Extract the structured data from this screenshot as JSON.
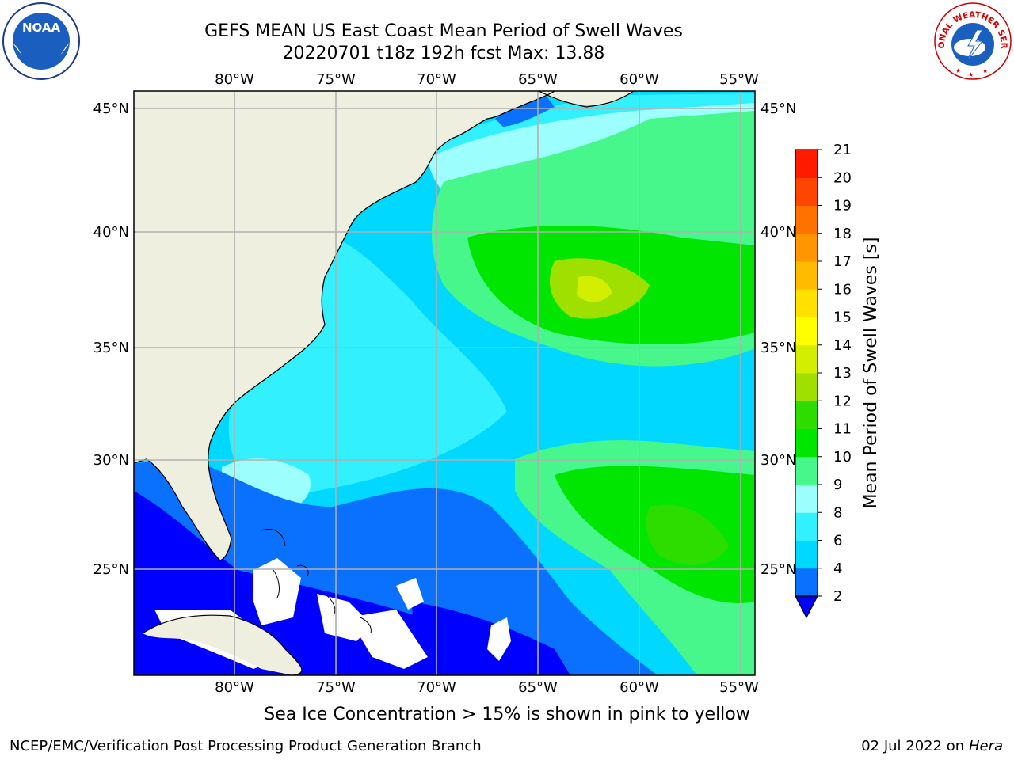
{
  "header": {
    "title_line1": "GEFS MEAN US East Coast Mean Period of Swell Waves",
    "title_line2": "20220701 t18z 192h fcst   Max: 13.88"
  },
  "logos": {
    "left": "NOAA",
    "right_arc": "NATIONAL WEATHER SERVICE"
  },
  "map": {
    "lon_labels": [
      "80°W",
      "75°W",
      "70°W",
      "65°W",
      "60°W",
      "55°W"
    ],
    "lat_labels": [
      "45°N",
      "40°N",
      "35°N",
      "30°N",
      "25°N"
    ],
    "lon_range": [
      -85,
      -54
    ],
    "lat_range": [
      20.5,
      46
    ],
    "colors": {
      "land": "#efefdf",
      "grid": "#b0b0b0",
      "coast": "#000000",
      "no_data": "#ffffff"
    }
  },
  "colorbar": {
    "label": "Mean Period of Swell Waves [s]",
    "ticks": [
      "2",
      "4",
      "6",
      "8",
      "9",
      "10",
      "11",
      "12",
      "13",
      "14",
      "15",
      "16",
      "17",
      "18",
      "19",
      "20",
      "21"
    ],
    "colors": [
      "#0a71fe",
      "#00d8ff",
      "#33f0ff",
      "#9cfffd",
      "#48f78b",
      "#00e600",
      "#2ddd00",
      "#a0e000",
      "#d4ee00",
      "#ffff00",
      "#ffe100",
      "#ffbb00",
      "#ff9500",
      "#ff7200",
      "#ff4500",
      "#ff1a00"
    ],
    "extend_color": "#0000ff"
  },
  "footer": {
    "note": "Sea Ice Concentration > 15% is shown in pink to yellow",
    "credit": "NCEP/EMC/Verification Post Processing Product Generation Branch",
    "date": "02 Jul 2022 on",
    "host": "Hera"
  }
}
